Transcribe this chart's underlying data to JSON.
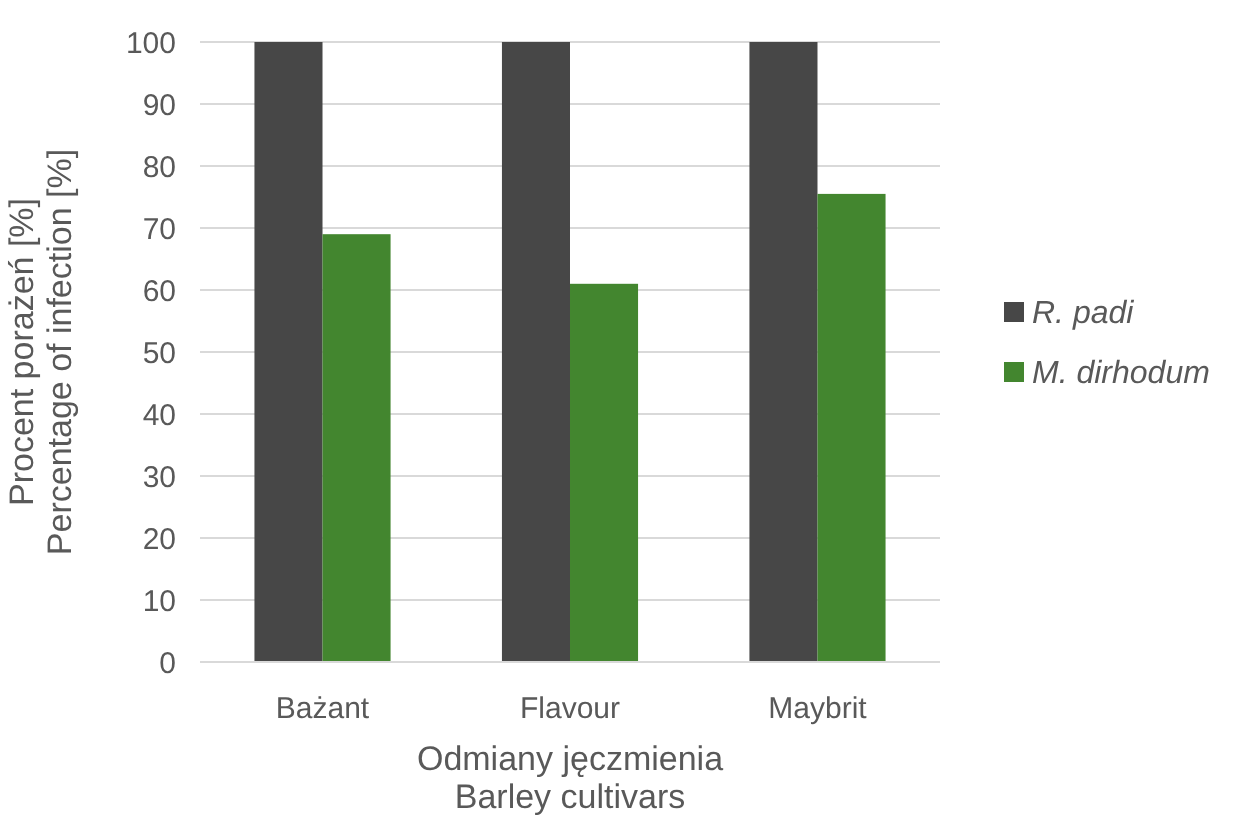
{
  "chart_data": {
    "type": "bar",
    "xlabel": "Odmiany jęczmienia\nBarley cultivars",
    "ylabel": "Procent porażeń [%]\nPercentage of infection [%]",
    "categories": [
      "Bażant",
      "Flavour",
      "Maybrit"
    ],
    "series": [
      {
        "name": "R. padi",
        "color": "#474747",
        "values": [
          100,
          100,
          100
        ]
      },
      {
        "name": "M. dirhodum",
        "color": "#43862f",
        "values": [
          69,
          61,
          75.5
        ]
      }
    ],
    "ylim": [
      0,
      100
    ],
    "yticks": [
      0,
      10,
      20,
      30,
      40,
      50,
      60,
      70,
      80,
      90,
      100
    ],
    "grid": "y",
    "legend": "right"
  }
}
